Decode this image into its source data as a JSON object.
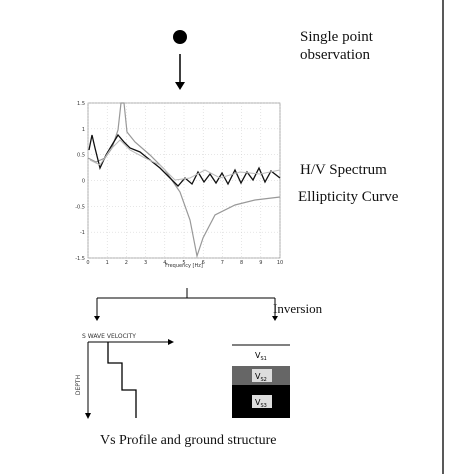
{
  "header": {
    "line1": "Single point",
    "line2": "observation"
  },
  "plot": {
    "xlim": [
      0,
      10
    ],
    "ylim": [
      -1.5,
      1.5
    ],
    "xticks": [
      0,
      1,
      2,
      3,
      4,
      5,
      6,
      7,
      8,
      9,
      10
    ],
    "yticks": [
      1.5,
      1,
      0.5,
      0,
      -0.5,
      -1,
      -1.5
    ],
    "xlabel": "Frequency [Hz]"
  },
  "labels": {
    "spectrum": "H/V Spectrum",
    "ellipticity": "Ellipticity Curve",
    "inversion": "Inversion"
  },
  "profile": {
    "xlabel": "S WAVE VELOCITY",
    "ylabel": "DEPTH"
  },
  "layers": [
    {
      "symbol": "V",
      "sub": "S1"
    },
    {
      "symbol": "V",
      "sub": "S2"
    },
    {
      "symbol": "V",
      "sub": "S3"
    }
  ],
  "caption": "Vs Profile and ground structure"
}
